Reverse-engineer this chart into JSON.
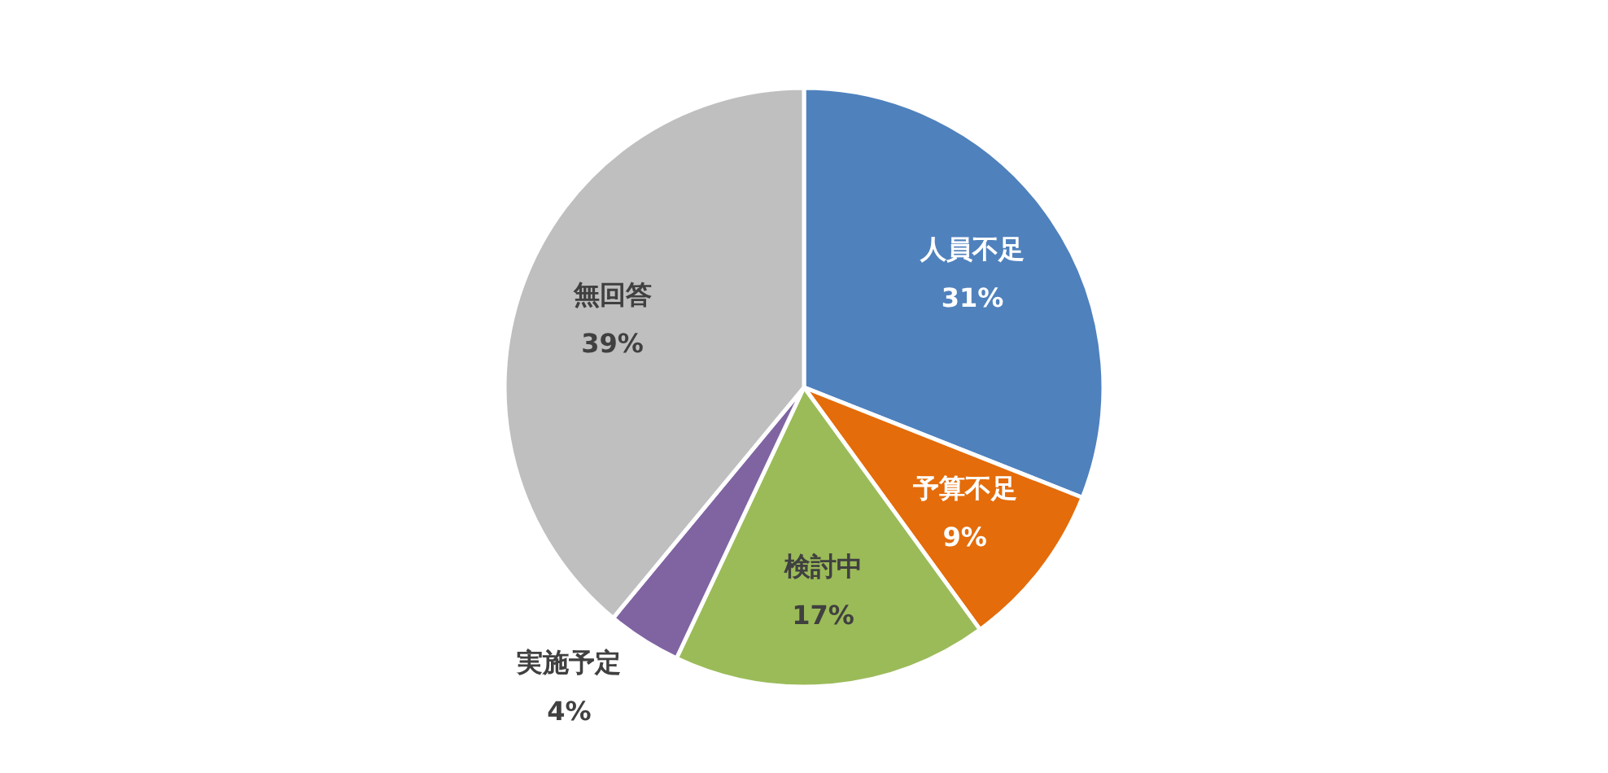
{
  "chart_data": {
    "type": "pie",
    "categories": [
      "人員不足",
      "予算不足",
      "検討中",
      "実施予定",
      "無回答"
    ],
    "values": [
      31,
      9,
      17,
      4,
      39
    ],
    "colors": [
      "#4f81bd",
      "#e46c0a",
      "#9bbb59",
      "#8064a2",
      "#bfbfbf"
    ],
    "value_labels": [
      "31%",
      "9%",
      "17%",
      "4%",
      "39%"
    ]
  }
}
